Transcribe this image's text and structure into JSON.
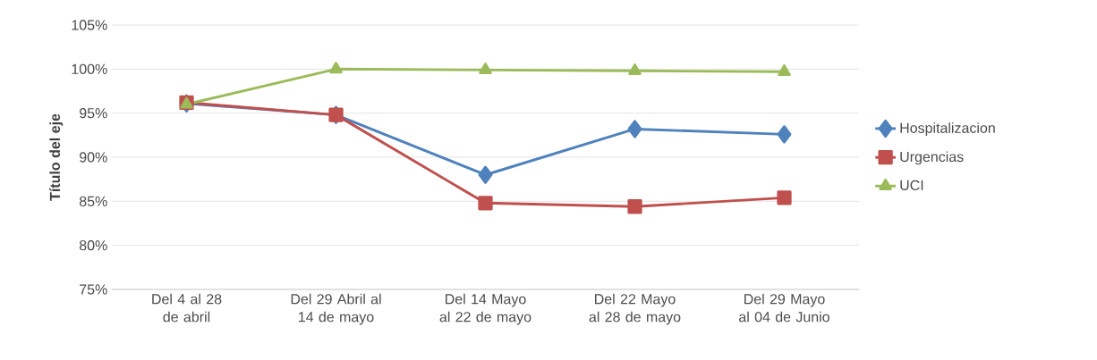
{
  "chart_data": {
    "type": "line",
    "ylabel": "Título del eje",
    "categories": [
      "Del 4 al 28 de abril",
      "Del 29 Abril al 14 de mayo",
      "Del 14 Mayo al 22 de mayo",
      "Del 22 Mayo al 28 de mayo",
      "Del 29 Mayo al 04 de Junio"
    ],
    "series": [
      {
        "name": "Hospitalizacion",
        "color": "#4f81bd",
        "marker": "diamond",
        "values": [
          96.1,
          94.8,
          88.0,
          93.2,
          92.6
        ]
      },
      {
        "name": "Urgencias",
        "color": "#c0504d",
        "marker": "square",
        "values": [
          96.2,
          94.8,
          84.8,
          84.4,
          85.4
        ]
      },
      {
        "name": "UCI",
        "color": "#9bbb59",
        "marker": "triangle",
        "values": [
          96.0,
          100.0,
          99.9,
          99.8,
          99.7
        ]
      }
    ],
    "ylim": [
      75,
      105
    ],
    "yticks": [
      {
        "value": 75,
        "label": "75%"
      },
      {
        "value": 80,
        "label": "80%"
      },
      {
        "value": 85,
        "label": "85%"
      },
      {
        "value": 90,
        "label": "90%"
      },
      {
        "value": 95,
        "label": "95%"
      },
      {
        "value": 100,
        "label": "100%"
      },
      {
        "value": 105,
        "label": "105%"
      }
    ],
    "grid": "y",
    "legend": "right",
    "line_style": "solid"
  }
}
